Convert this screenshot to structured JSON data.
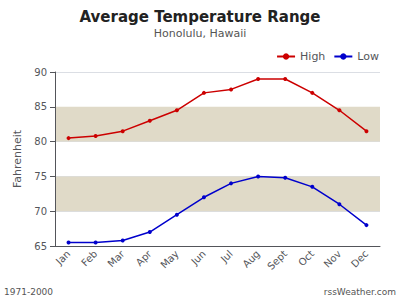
{
  "chart_data": {
    "type": "line",
    "title": "Average Temperature Range",
    "subtitle": "Honolulu, Hawaii",
    "y_label": "Fahrenheit",
    "categories": [
      "Jan",
      "Feb",
      "Mar",
      "Apr",
      "May",
      "Jun",
      "Jul",
      "Aug",
      "Sept",
      "Oct",
      "Nov",
      "Dec"
    ],
    "series": [
      {
        "name": "High",
        "color": "#cc0000",
        "values": [
          80.5,
          80.8,
          81.5,
          83.0,
          84.5,
          87.0,
          87.5,
          89.0,
          89.0,
          87.0,
          84.5,
          81.5
        ]
      },
      {
        "name": "Low",
        "color": "#0000cc",
        "values": [
          65.5,
          65.5,
          65.8,
          67.0,
          69.5,
          72.0,
          74.0,
          75.0,
          74.8,
          73.5,
          71.0,
          68.0
        ]
      }
    ],
    "bands": [
      {
        "from": 80,
        "to": 85,
        "color": "#e0dac8"
      },
      {
        "from": 70,
        "to": 75,
        "color": "#e0dac8"
      }
    ],
    "ylim": [
      65,
      90
    ],
    "yticks": [
      65,
      70,
      75,
      80,
      85,
      90
    ],
    "grid": true,
    "legend": "upper right",
    "marker": "circle",
    "annotations": [
      "1971-2000",
      "rssWeather.com"
    ]
  }
}
